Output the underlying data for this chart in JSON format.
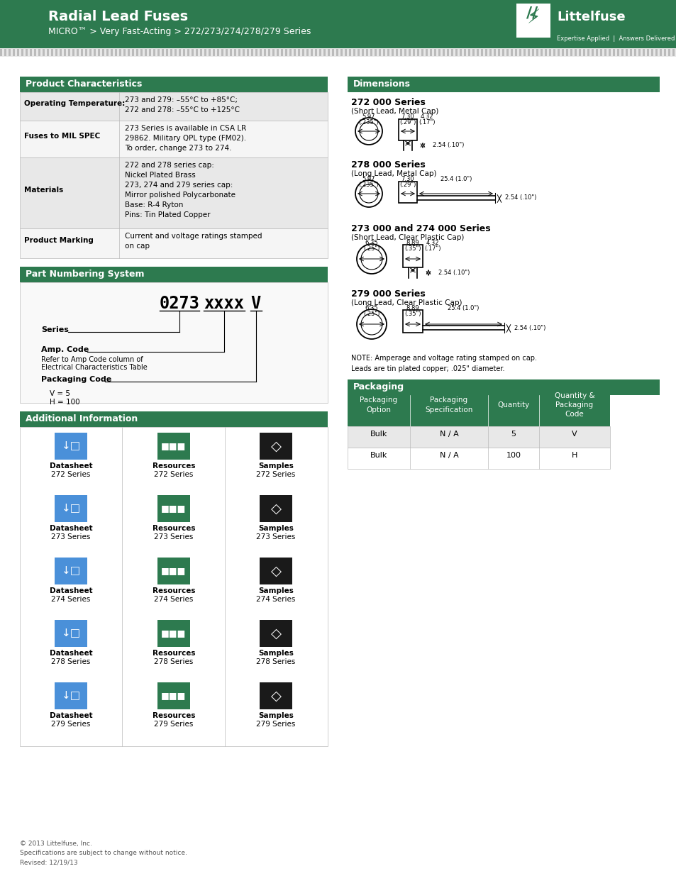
{
  "title_main": "Radial Lead Fuses",
  "title_sub": "MICRO™ > Very Fast-Acting > 272/273/274/278/279 Series",
  "header_bg": "#2d7a4f",
  "section_header_bg": "#2d7a4f",
  "icon_blue": "#4a90d9",
  "icon_teal": "#2d7a4f",
  "icon_dark": "#1a1a1a",
  "footer_text": "© 2013 Littelfuse, Inc.\nSpecifications are subject to change without notice.\nRevised: 12/19/13",
  "product_chars_rows": [
    [
      "Operating Temperature:",
      "273 and 279: –55°C to +85°C;\n272 and 278: –55°C to +125°C"
    ],
    [
      "Fuses to MIL SPEC",
      "273 Series is available in CSA LR\n29862. Military QPL type (FM02).\nTo order, change 273 to 274."
    ],
    [
      "Materials",
      "272 and 278 series cap:\nNickel Plated Brass\n273, 274 and 279 series cap:\nMirror polished Polycarbonate\nBase: R-4 Ryton\nPins: Tin Plated Copper"
    ],
    [
      "Product Marking",
      "Current and voltage ratings stamped\non cap"
    ]
  ],
  "packaging_rows": [
    [
      "Bulk",
      "N / A",
      "5",
      "V"
    ],
    [
      "Bulk",
      "N / A",
      "100",
      "H"
    ]
  ],
  "packaging_headers": [
    "Packaging\nOption",
    "Packaging\nSpecification",
    "Quantity",
    "Quantity &\nPackaging\nCode"
  ],
  "series_labels": [
    "272 Series",
    "273 Series",
    "274 Series",
    "278 Series",
    "279 Series"
  ],
  "note_text": "NOTE: Amperage and voltage rating stamped on cap.\nLeads are tin plated copper; .025\" diameter."
}
